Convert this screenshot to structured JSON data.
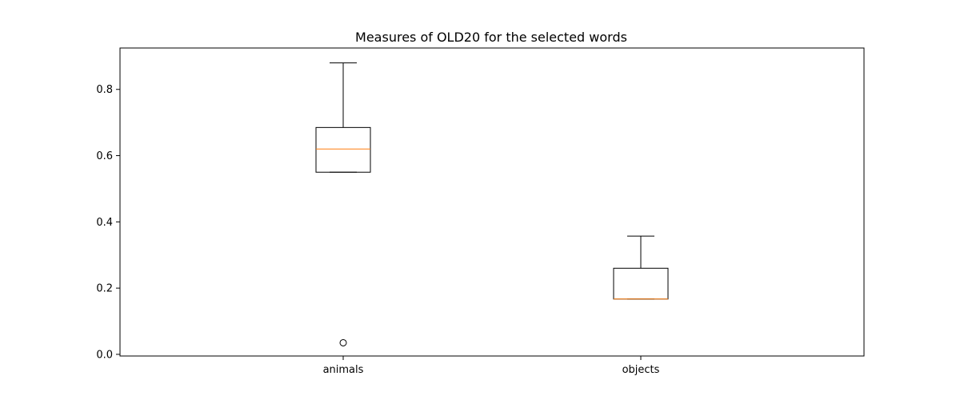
{
  "chart_data": {
    "type": "boxplot",
    "title": "Measures of OLD20 for the selected words",
    "xlabel": "",
    "ylabel": "",
    "ylim": [
      -0.005,
      0.925
    ],
    "yticks": [
      "0.0",
      "0.2",
      "0.4",
      "0.6",
      "0.8"
    ],
    "categories": [
      "animals",
      "objects"
    ],
    "boxes": [
      {
        "category": "animals",
        "whislo": 0.55,
        "q1": 0.55,
        "med": 0.62,
        "q3": 0.685,
        "whishi": 0.88,
        "fliers": [
          0.035
        ]
      },
      {
        "category": "objects",
        "whislo": 0.167,
        "q1": 0.167,
        "med": 0.167,
        "q3": 0.26,
        "whishi": 0.357,
        "fliers": []
      }
    ],
    "colors": {
      "box": "#000000",
      "median": "#ff7f0e",
      "frame": "#000000"
    },
    "grid": false
  }
}
